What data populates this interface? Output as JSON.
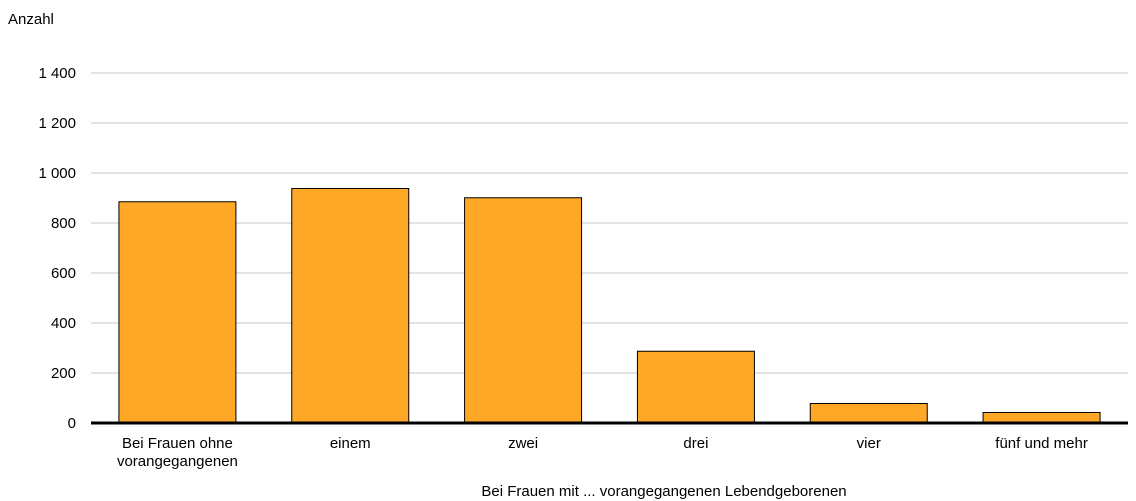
{
  "chart_data": {
    "type": "bar",
    "ylabel": "Anzahl",
    "xlabel": "Bei Frauen mit ... vorangegangenen Lebendgeborenen",
    "categories": [
      [
        "Bei Frauen ohne",
        "vorangegangenen"
      ],
      [
        "einem"
      ],
      [
        "zwei"
      ],
      [
        "drei"
      ],
      [
        "vier"
      ],
      [
        "fünf und mehr"
      ]
    ],
    "values": [
      885,
      938,
      901,
      287,
      78,
      42
    ],
    "ylim": [
      0,
      1400
    ],
    "yticks": [
      0,
      200,
      400,
      600,
      800,
      1000,
      1200,
      1400
    ],
    "ytick_labels": [
      "0",
      "200",
      "400",
      "600",
      "800",
      "1 000",
      "1 200",
      "1 400"
    ],
    "grid": true,
    "colors": {
      "bar_fill": "#FFA726",
      "bar_stroke": "#000000",
      "grid": "#c8c8c8",
      "axis": "#000000"
    }
  }
}
